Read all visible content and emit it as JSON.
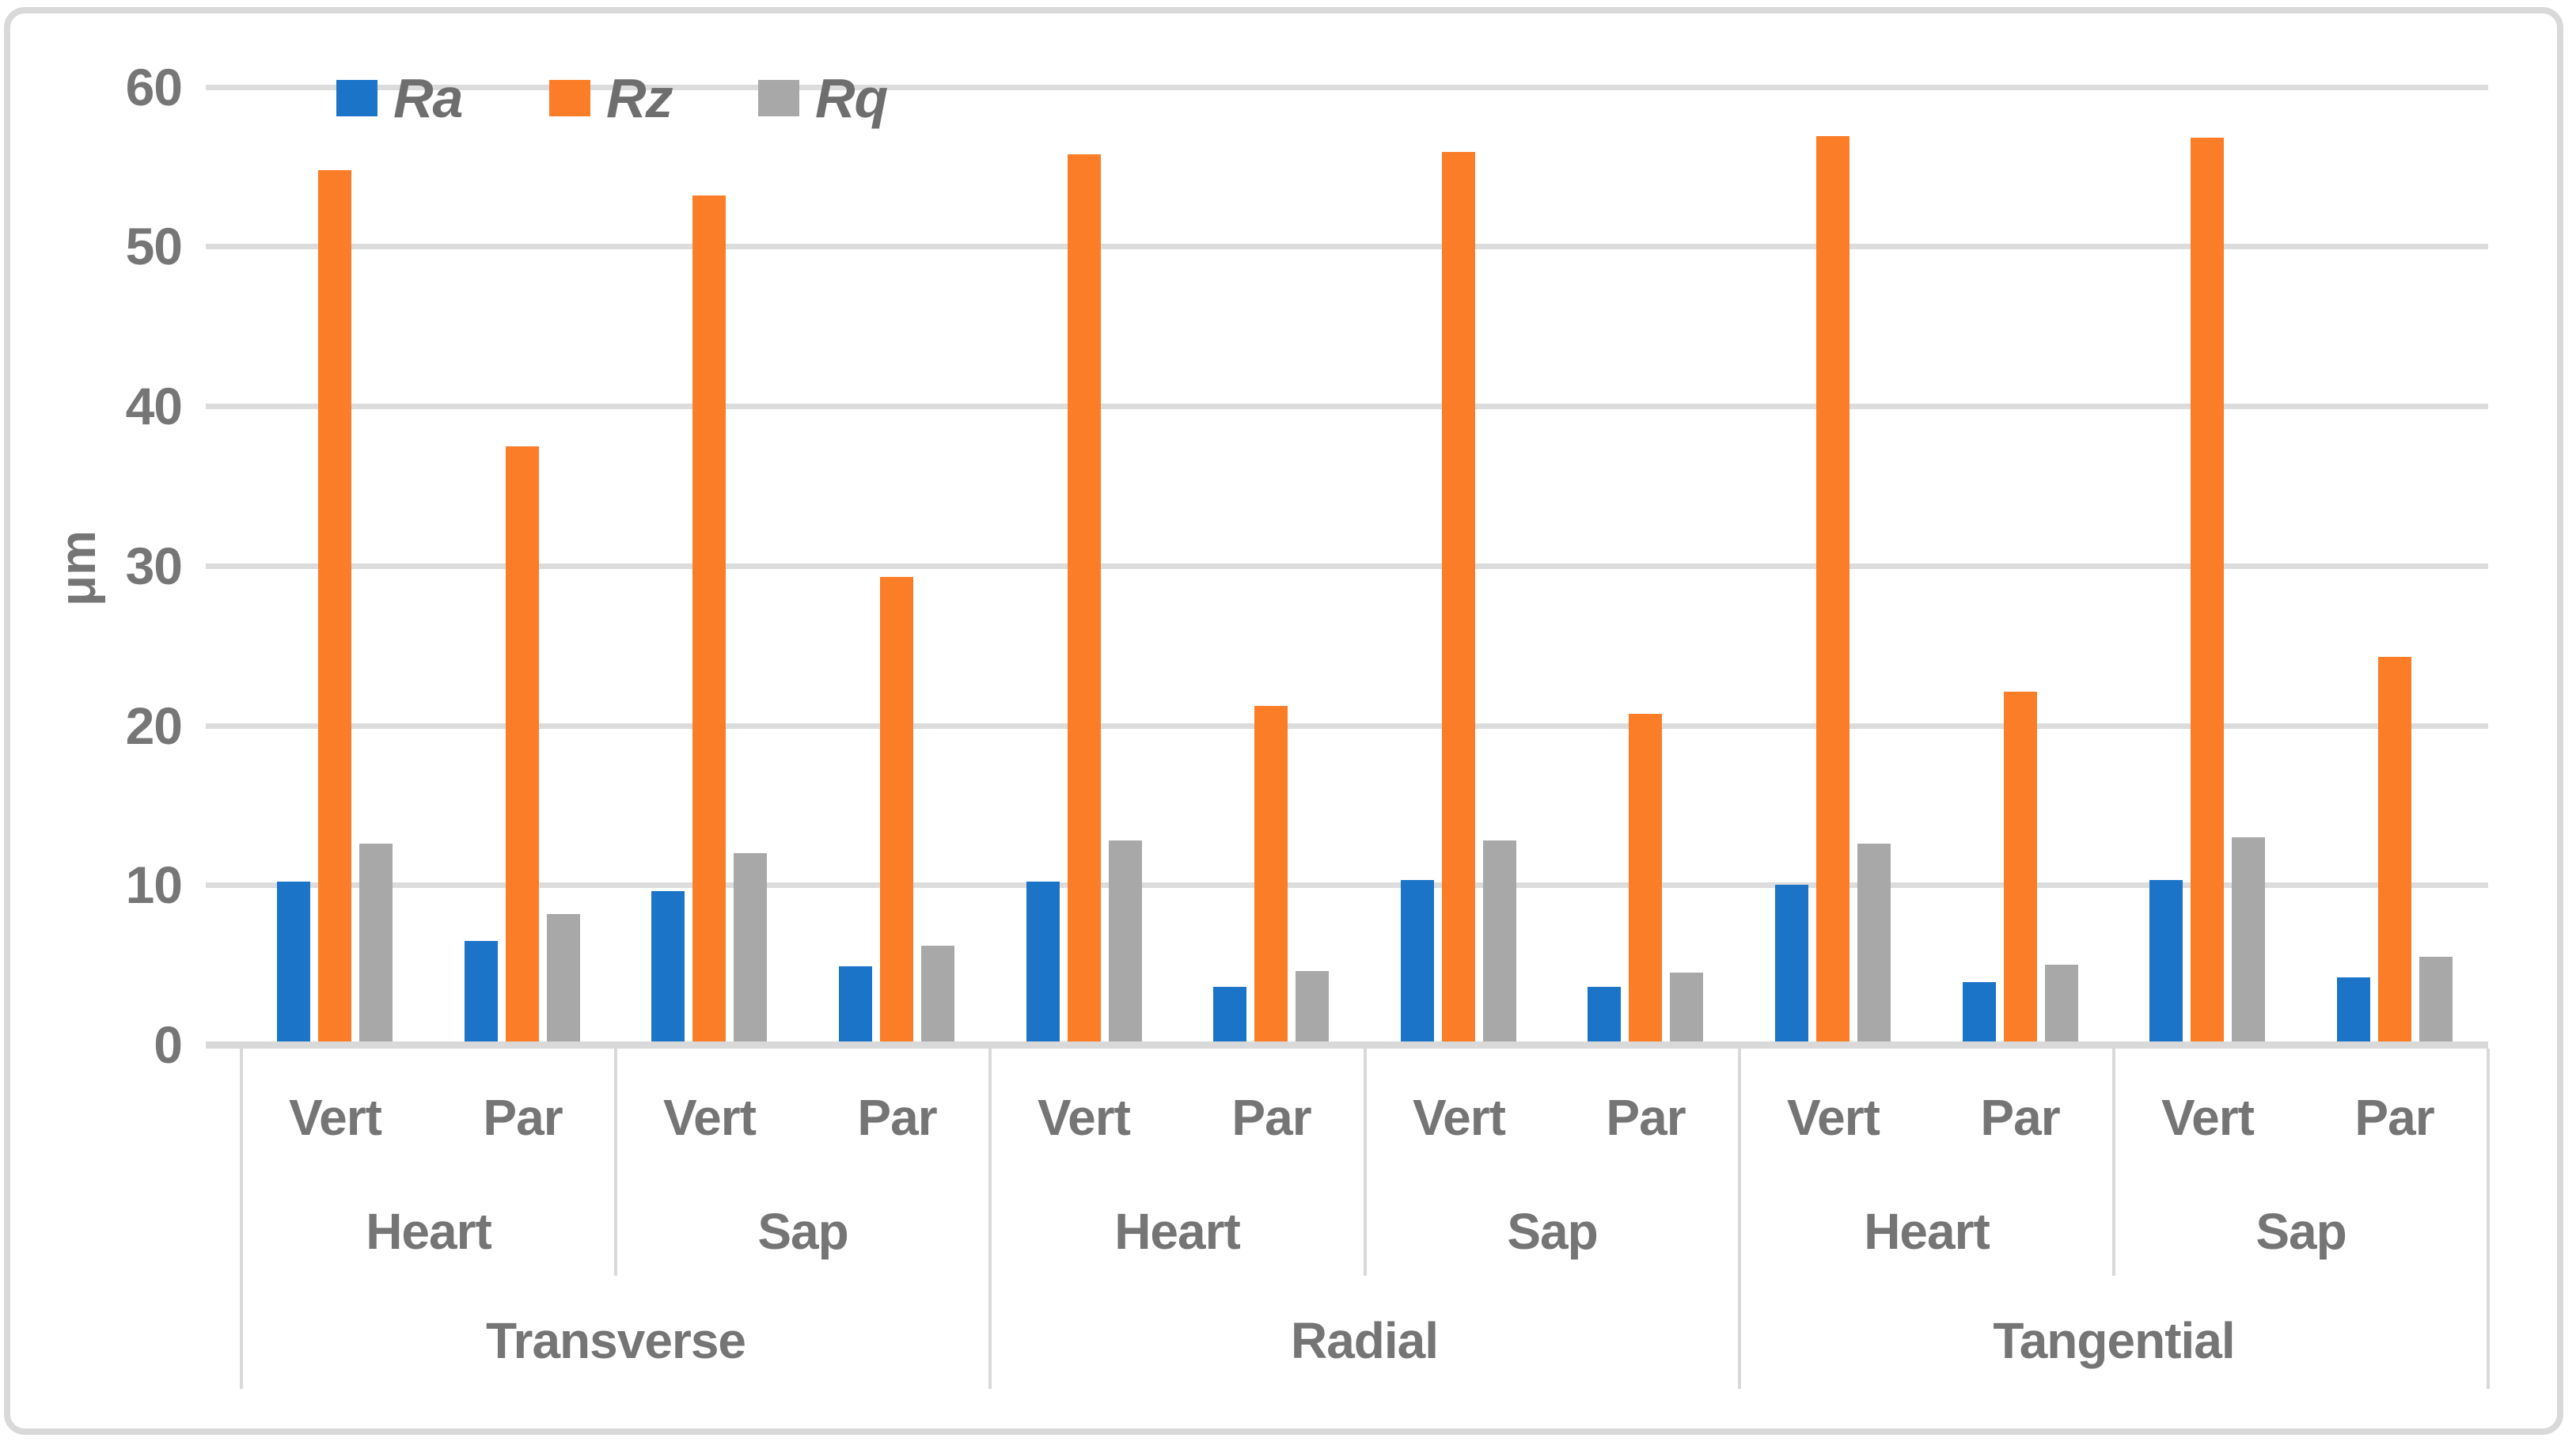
{
  "y_axis": {
    "title": "μm",
    "ticks": [
      "0",
      "10",
      "20",
      "30",
      "40",
      "50",
      "60"
    ]
  },
  "x_axis": {
    "level1_labels": [
      "Vert",
      "Par",
      "Vert",
      "Par",
      "Vert",
      "Par",
      "Vert",
      "Par",
      "Vert",
      "Par",
      "Vert",
      "Par"
    ],
    "level2_labels": [
      "Heart",
      "Sap",
      "Heart",
      "Sap",
      "Heart",
      "Sap"
    ],
    "level3_labels": [
      "Transverse",
      "Radial",
      "Tangential"
    ]
  },
  "legend": [
    {
      "label": "Ra",
      "color": "#1B74C8"
    },
    {
      "label": "Rz",
      "color": "#FB7D27"
    },
    {
      "label": "Rq",
      "color": "#A8A8A8"
    }
  ],
  "colors": {
    "grid": "#DCDCDC",
    "axis_line": "#D9D9D9",
    "frame_border": "#D9D9D9",
    "text": "#757575"
  },
  "chart_data": {
    "type": "bar",
    "title": "",
    "xlabel": "",
    "ylabel": "μm",
    "ylim": [
      0,
      60
    ],
    "ytick_step": 10,
    "grid": "horizontal",
    "legend_position": "top-inside",
    "categories": [
      {
        "section": "Transverse",
        "wood": "Heart",
        "direction": "Vert"
      },
      {
        "section": "Transverse",
        "wood": "Heart",
        "direction": "Par"
      },
      {
        "section": "Transverse",
        "wood": "Sap",
        "direction": "Vert"
      },
      {
        "section": "Transverse",
        "wood": "Sap",
        "direction": "Par"
      },
      {
        "section": "Radial",
        "wood": "Heart",
        "direction": "Vert"
      },
      {
        "section": "Radial",
        "wood": "Heart",
        "direction": "Par"
      },
      {
        "section": "Radial",
        "wood": "Sap",
        "direction": "Vert"
      },
      {
        "section": "Radial",
        "wood": "Sap",
        "direction": "Par"
      },
      {
        "section": "Tangential",
        "wood": "Heart",
        "direction": "Vert"
      },
      {
        "section": "Tangential",
        "wood": "Heart",
        "direction": "Par"
      },
      {
        "section": "Tangential",
        "wood": "Sap",
        "direction": "Vert"
      },
      {
        "section": "Tangential",
        "wood": "Sap",
        "direction": "Par"
      }
    ],
    "series": [
      {
        "name": "Ra",
        "color": "#1B74C8",
        "values": [
          10.2,
          6.5,
          9.6,
          4.9,
          10.2,
          3.6,
          10.3,
          3.6,
          10.0,
          3.9,
          10.3,
          4.2
        ]
      },
      {
        "name": "Rz",
        "color": "#FB7D27",
        "values": [
          54.8,
          37.5,
          53.2,
          29.3,
          55.8,
          21.2,
          55.9,
          20.7,
          56.9,
          22.1,
          56.8,
          24.3
        ]
      },
      {
        "name": "Rq",
        "color": "#A8A8A8",
        "values": [
          12.6,
          8.2,
          12.0,
          6.2,
          12.8,
          4.6,
          12.8,
          4.5,
          12.6,
          5.0,
          13.0,
          5.5
        ]
      }
    ]
  }
}
